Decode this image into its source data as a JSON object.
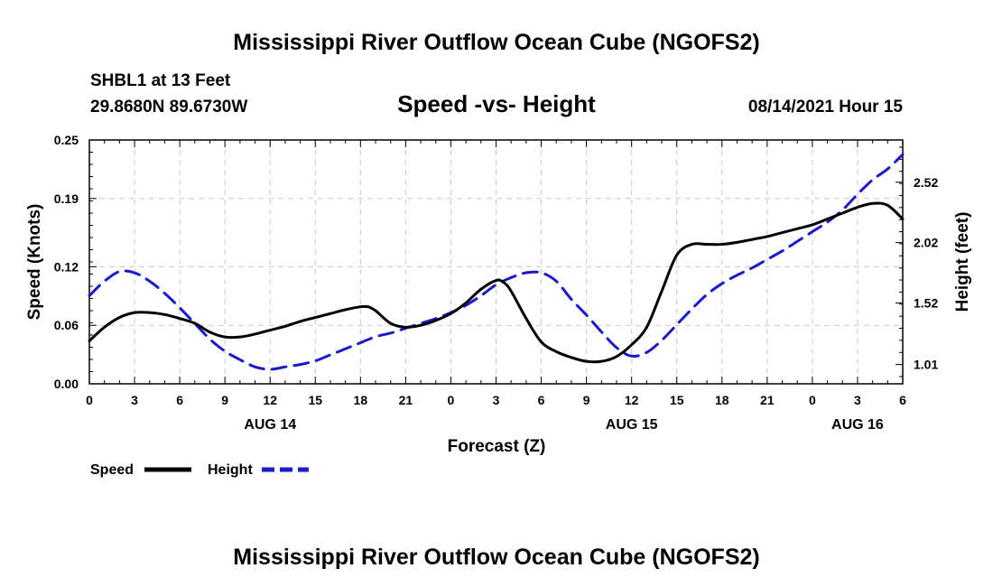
{
  "chart_data": {
    "type": "line",
    "title": "Mississippi River Outflow Ocean Cube (NGOFS2)",
    "footer_title": "Mississippi River Outflow Ocean Cube (NGOFS2)",
    "subtitle": "Speed -vs- Height",
    "station": "SHBL1 at 13 Feet",
    "coordinates": "29.8680N  89.6730W",
    "datetime": "08/14/2021 Hour 15",
    "xlabel": "Forecast (Z)",
    "ylabel_left": "Speed (Knots)",
    "ylabel_right": "Height (feet)",
    "x_range": [
      0,
      54
    ],
    "x_ticks": [
      0,
      3,
      6,
      9,
      12,
      15,
      18,
      21,
      24,
      27,
      30,
      33,
      36,
      39,
      42,
      45,
      48,
      51,
      54
    ],
    "x_tick_labels": [
      "0",
      "3",
      "6",
      "9",
      "12",
      "15",
      "18",
      "21",
      "0",
      "3",
      "6",
      "9",
      "12",
      "15",
      "18",
      "21",
      "0",
      "3",
      "6"
    ],
    "date_labels": [
      {
        "x": 12,
        "label": "AUG 14"
      },
      {
        "x": 36,
        "label": "AUG 15"
      },
      {
        "x": 51,
        "label": "AUG 16"
      }
    ],
    "y_left_range": [
      0,
      0.25
    ],
    "y_left_ticks": [
      0.0,
      0.06,
      0.12,
      0.19,
      0.25
    ],
    "y_left_tick_labels": [
      "0.00",
      "0.06",
      "0.12",
      "0.19",
      "0.25"
    ],
    "y_right_range": [
      0.85,
      2.87
    ],
    "y_right_ticks": [
      1.01,
      1.52,
      2.02,
      2.52
    ],
    "y_right_tick_labels": [
      "1.01",
      "1.52",
      "2.02",
      "2.52"
    ],
    "grid": true,
    "series": [
      {
        "name": "Speed",
        "axis": "left",
        "color": "#000000",
        "dash": "solid",
        "points": [
          [
            0,
            0.044
          ],
          [
            1,
            0.058
          ],
          [
            2,
            0.068
          ],
          [
            3,
            0.073
          ],
          [
            4,
            0.073
          ],
          [
            5,
            0.071
          ],
          [
            6,
            0.067
          ],
          [
            7,
            0.062
          ],
          [
            8,
            0.053
          ],
          [
            9,
            0.048
          ],
          [
            10,
            0.048
          ],
          [
            11,
            0.051
          ],
          [
            12,
            0.055
          ],
          [
            13,
            0.059
          ],
          [
            14,
            0.064
          ],
          [
            15,
            0.068
          ],
          [
            16,
            0.072
          ],
          [
            17,
            0.076
          ],
          [
            18,
            0.079
          ],
          [
            18.5,
            0.079
          ],
          [
            19,
            0.075
          ],
          [
            20,
            0.062
          ],
          [
            21,
            0.058
          ],
          [
            22,
            0.06
          ],
          [
            23,
            0.065
          ],
          [
            24,
            0.072
          ],
          [
            25,
            0.083
          ],
          [
            26,
            0.097
          ],
          [
            27,
            0.106
          ],
          [
            27.5,
            0.104
          ],
          [
            28,
            0.095
          ],
          [
            29,
            0.067
          ],
          [
            30,
            0.043
          ],
          [
            31,
            0.033
          ],
          [
            32,
            0.027
          ],
          [
            33,
            0.023
          ],
          [
            34,
            0.023
          ],
          [
            35,
            0.028
          ],
          [
            36,
            0.04
          ],
          [
            37,
            0.058
          ],
          [
            38,
            0.095
          ],
          [
            39,
            0.132
          ],
          [
            40,
            0.143
          ],
          [
            41,
            0.143
          ],
          [
            42,
            0.143
          ],
          [
            43,
            0.145
          ],
          [
            44,
            0.148
          ],
          [
            45,
            0.151
          ],
          [
            46,
            0.155
          ],
          [
            47,
            0.159
          ],
          [
            48,
            0.163
          ],
          [
            49,
            0.169
          ],
          [
            50,
            0.175
          ],
          [
            51,
            0.181
          ],
          [
            52,
            0.185
          ],
          [
            53,
            0.183
          ],
          [
            54,
            0.169
          ]
        ]
      },
      {
        "name": "Height",
        "axis": "right",
        "color": "#1a1acd",
        "dash": "dashed",
        "points": [
          [
            0,
            1.58
          ],
          [
            1,
            1.7
          ],
          [
            2,
            1.78
          ],
          [
            3,
            1.77
          ],
          [
            4,
            1.7
          ],
          [
            5,
            1.6
          ],
          [
            6,
            1.48
          ],
          [
            7,
            1.35
          ],
          [
            8,
            1.22
          ],
          [
            9,
            1.12
          ],
          [
            10,
            1.05
          ],
          [
            11,
            0.99
          ],
          [
            12,
            0.97
          ],
          [
            13,
            0.99
          ],
          [
            14,
            1.01
          ],
          [
            15,
            1.04
          ],
          [
            16,
            1.09
          ],
          [
            17,
            1.14
          ],
          [
            18,
            1.19
          ],
          [
            19,
            1.24
          ],
          [
            20,
            1.27
          ],
          [
            21,
            1.31
          ],
          [
            22,
            1.35
          ],
          [
            23,
            1.39
          ],
          [
            24,
            1.44
          ],
          [
            25,
            1.5
          ],
          [
            26,
            1.58
          ],
          [
            27,
            1.67
          ],
          [
            28,
            1.73
          ],
          [
            29,
            1.77
          ],
          [
            30,
            1.77
          ],
          [
            31,
            1.7
          ],
          [
            32,
            1.55
          ],
          [
            33,
            1.42
          ],
          [
            34,
            1.28
          ],
          [
            35,
            1.15
          ],
          [
            36,
            1.08
          ],
          [
            37,
            1.11
          ],
          [
            38,
            1.21
          ],
          [
            39,
            1.34
          ],
          [
            40,
            1.47
          ],
          [
            41,
            1.59
          ],
          [
            42,
            1.68
          ],
          [
            43,
            1.75
          ],
          [
            44,
            1.81
          ],
          [
            45,
            1.88
          ],
          [
            46,
            1.95
          ],
          [
            47,
            2.03
          ],
          [
            48,
            2.11
          ],
          [
            49,
            2.19
          ],
          [
            50,
            2.29
          ],
          [
            51,
            2.42
          ],
          [
            52,
            2.54
          ],
          [
            53,
            2.63
          ],
          [
            54,
            2.75
          ]
        ]
      }
    ],
    "legend": [
      {
        "label": "Speed",
        "color": "#000000",
        "dash": "solid"
      },
      {
        "label": "Height",
        "color": "#1a1acd",
        "dash": "dashed"
      }
    ]
  }
}
